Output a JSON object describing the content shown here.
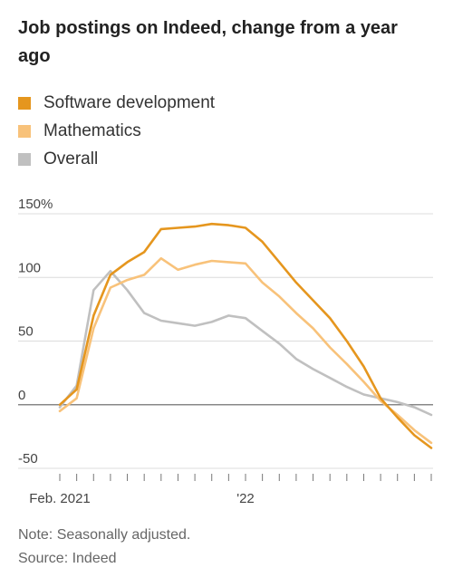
{
  "title": "Job postings on Indeed, change from a year ago",
  "chart_data": {
    "type": "line",
    "title": "Job postings on Indeed, change from a year ago",
    "ylim": [
      -50,
      150
    ],
    "yticks": [
      150,
      100,
      50,
      0,
      -50
    ],
    "ytick_labels": [
      "150%",
      "100",
      "50",
      "0",
      "-50"
    ],
    "xtick_labels": [
      "Feb. 2021",
      "'22"
    ],
    "xtick_dates": [
      "2021-02",
      "2022-01"
    ],
    "grid": true,
    "legend_position": "top-left",
    "series": [
      {
        "name": "Software development",
        "color": "#e5961e",
        "points": [
          [
            "2021-02",
            0
          ],
          [
            "2021-03",
            12
          ],
          [
            "2021-04",
            70
          ],
          [
            "2021-05",
            102
          ],
          [
            "2021-06",
            112
          ],
          [
            "2021-07",
            120
          ],
          [
            "2021-08",
            138
          ],
          [
            "2021-09",
            139
          ],
          [
            "2021-10",
            140
          ],
          [
            "2021-11",
            142
          ],
          [
            "2021-12",
            141
          ],
          [
            "2022-01",
            139
          ],
          [
            "2022-02",
            128
          ],
          [
            "2022-03",
            112
          ],
          [
            "2022-04",
            96
          ],
          [
            "2022-05",
            82
          ],
          [
            "2022-06",
            68
          ],
          [
            "2022-07",
            50
          ],
          [
            "2022-08",
            30
          ],
          [
            "2022-09",
            5
          ],
          [
            "2022-10",
            -10
          ],
          [
            "2022-11",
            -24
          ],
          [
            "2022-12",
            -34
          ]
        ]
      },
      {
        "name": "Mathematics",
        "color": "#f8c27a",
        "points": [
          [
            "2021-02",
            -5
          ],
          [
            "2021-03",
            5
          ],
          [
            "2021-04",
            60
          ],
          [
            "2021-05",
            92
          ],
          [
            "2021-06",
            98
          ],
          [
            "2021-07",
            102
          ],
          [
            "2021-08",
            115
          ],
          [
            "2021-09",
            106
          ],
          [
            "2021-10",
            110
          ],
          [
            "2021-11",
            113
          ],
          [
            "2021-12",
            112
          ],
          [
            "2022-01",
            111
          ],
          [
            "2022-02",
            96
          ],
          [
            "2022-03",
            85
          ],
          [
            "2022-04",
            72
          ],
          [
            "2022-05",
            60
          ],
          [
            "2022-06",
            45
          ],
          [
            "2022-07",
            32
          ],
          [
            "2022-08",
            18
          ],
          [
            "2022-09",
            3
          ],
          [
            "2022-10",
            -8
          ],
          [
            "2022-11",
            -20
          ],
          [
            "2022-12",
            -30
          ]
        ]
      },
      {
        "name": "Overall",
        "color": "#c0c0c0",
        "points": [
          [
            "2021-02",
            -2
          ],
          [
            "2021-03",
            15
          ],
          [
            "2021-04",
            90
          ],
          [
            "2021-05",
            105
          ],
          [
            "2021-06",
            90
          ],
          [
            "2021-07",
            72
          ],
          [
            "2021-08",
            66
          ],
          [
            "2021-09",
            64
          ],
          [
            "2021-10",
            62
          ],
          [
            "2021-11",
            65
          ],
          [
            "2021-12",
            70
          ],
          [
            "2022-01",
            68
          ],
          [
            "2022-02",
            58
          ],
          [
            "2022-03",
            48
          ],
          [
            "2022-04",
            36
          ],
          [
            "2022-05",
            28
          ],
          [
            "2022-06",
            21
          ],
          [
            "2022-07",
            14
          ],
          [
            "2022-08",
            8
          ],
          [
            "2022-09",
            5
          ],
          [
            "2022-10",
            2
          ],
          [
            "2022-11",
            -2
          ],
          [
            "2022-12",
            -8
          ]
        ]
      }
    ]
  },
  "notes": {
    "note": "Note: Seasonally adjusted.",
    "source": "Source: Indeed"
  }
}
